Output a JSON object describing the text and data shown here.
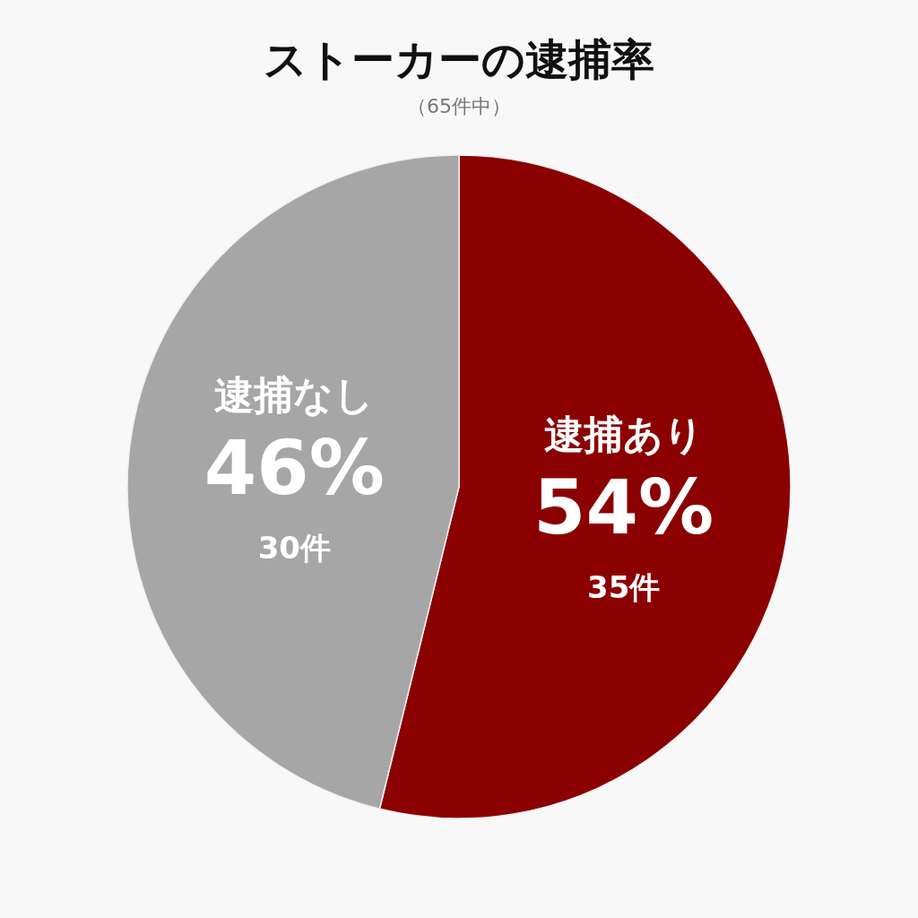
{
  "chart_data": {
    "type": "pie",
    "title": "ストーカーの逮捕率",
    "subtitle": "（65件中）",
    "categories": [
      "逮捕あり",
      "逮捕なし"
    ],
    "values": [
      35,
      30
    ],
    "colors": [
      "#8b0000",
      "#a6a6a6"
    ],
    "value_labels": [
      "35件",
      "30件"
    ],
    "annotations": [
      {
        "text": "54%",
        "x": "逮捕あり"
      },
      {
        "text": "46%",
        "x": "逮捕なし"
      }
    ],
    "legend": false
  }
}
